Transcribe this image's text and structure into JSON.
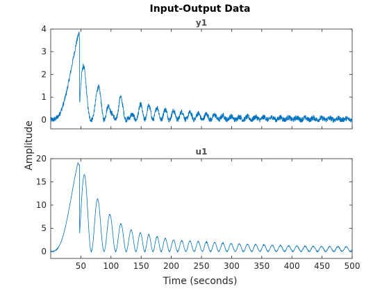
{
  "chart_data": {
    "type": "line",
    "title": "Input-Output Data",
    "xlabel": "Time (seconds)",
    "ylabel": "Amplitude",
    "xlim": [
      0,
      500
    ],
    "grid": false,
    "legend": "none",
    "color": "#0072bd",
    "panels": [
      {
        "name": "y1",
        "ylim": [
          -0.4,
          4
        ],
        "yticks": [
          0,
          1,
          2,
          3,
          4
        ],
        "xticks_labeled": false,
        "peaks": [
          {
            "x": 0,
            "y": 0
          },
          {
            "x": 47,
            "y": 3.85
          },
          {
            "x": 65,
            "y": 0.55
          },
          {
            "x": 85,
            "y": 1.85
          },
          {
            "x": 100,
            "y": 0.3
          },
          {
            "x": 115,
            "y": 1.1
          },
          {
            "x": 130,
            "y": 0.1
          },
          {
            "x": 150,
            "y": 0.7
          },
          {
            "x": 200,
            "y": 0.4
          },
          {
            "x": 300,
            "y": 0.15
          },
          {
            "x": 500,
            "y": 0.05
          }
        ],
        "noise": 0.12
      },
      {
        "name": "u1",
        "ylim": [
          -1.5,
          20
        ],
        "yticks": [
          0,
          5,
          10,
          15,
          20
        ],
        "xticks": [
          50,
          100,
          150,
          200,
          250,
          300,
          350,
          400,
          450,
          500
        ],
        "xticks_labeled": true,
        "peaks": [
          {
            "x": 0,
            "y": 0
          },
          {
            "x": 45,
            "y": 19.2
          },
          {
            "x": 85,
            "y": 9.6
          },
          {
            "x": 110,
            "y": 6.5
          },
          {
            "x": 130,
            "y": 4.8
          },
          {
            "x": 150,
            "y": 4.0
          },
          {
            "x": 200,
            "y": 2.5
          },
          {
            "x": 300,
            "y": 1.7
          },
          {
            "x": 400,
            "y": 1.2
          },
          {
            "x": 500,
            "y": 1.0
          }
        ]
      }
    ]
  }
}
